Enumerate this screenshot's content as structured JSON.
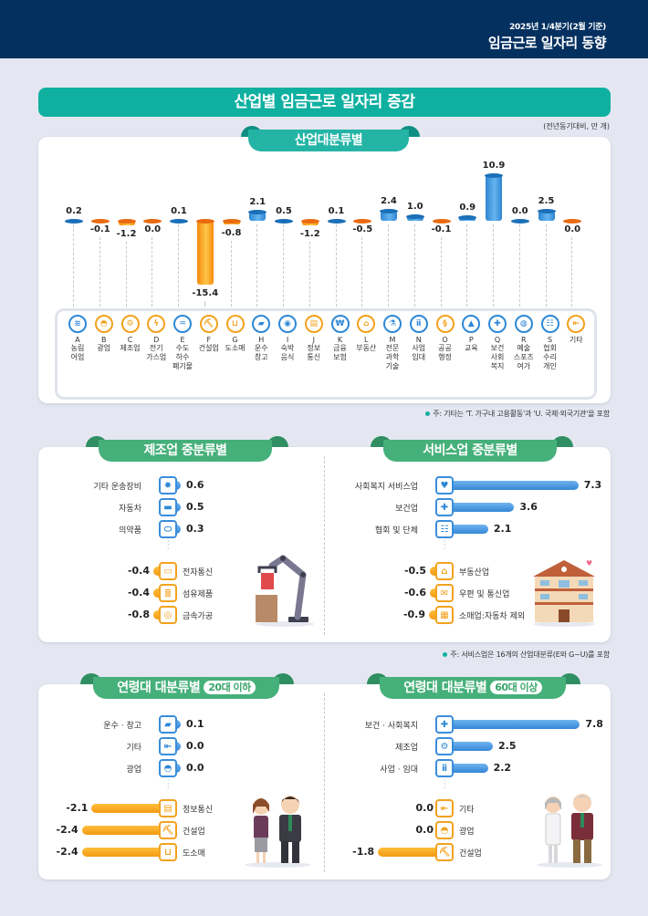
{
  "header": {
    "subtitle": "2025년 1/4분기(2월 기준)",
    "title": "임금근로 일자리 동향"
  },
  "main_title": "산업별 임금근로 일자리 증감",
  "unit_note": "(전년동기대비, 만 개)",
  "industry_section": {
    "tab_label": "산업대분류별",
    "footnote": "주: 기타는 'T. 가구내 고용활동'과 'U. 국제·외국기관'을 포함",
    "items": [
      {
        "code": "A",
        "name": "농림\n어업",
        "value": "0.2",
        "icon": "wheat-icon",
        "glyph": "≋",
        "color": "b"
      },
      {
        "code": "B",
        "name": "광업",
        "value": "-0.1",
        "icon": "helmet-icon",
        "glyph": "◓",
        "color": "o"
      },
      {
        "code": "C",
        "name": "제조업",
        "value": "-1.2",
        "icon": "gears-icon",
        "glyph": "⚙",
        "color": "o"
      },
      {
        "code": "D",
        "name": "전기\n가스업",
        "value": "0.0",
        "icon": "lightning-icon",
        "glyph": "ϟ",
        "color": "o"
      },
      {
        "code": "E",
        "name": "수도\n하수\n폐기물",
        "value": "0.1",
        "icon": "faucet-icon",
        "glyph": "♒",
        "color": "b"
      },
      {
        "code": "F",
        "name": "건설업",
        "value": "-15.4",
        "icon": "excavator-icon",
        "glyph": "⛏",
        "color": "o"
      },
      {
        "code": "G",
        "name": "도소매",
        "value": "-0.8",
        "icon": "basket-icon",
        "glyph": "⊔",
        "color": "o"
      },
      {
        "code": "H",
        "name": "운수\n창고",
        "value": "2.1",
        "icon": "truck-icon",
        "glyph": "▰",
        "color": "b"
      },
      {
        "code": "I",
        "name": "숙박\n음식",
        "value": "0.5",
        "icon": "plate-icon",
        "glyph": "◉",
        "color": "b"
      },
      {
        "code": "J",
        "name": "정보\n통신",
        "value": "-1.2",
        "icon": "document-icon",
        "glyph": "▤",
        "color": "o"
      },
      {
        "code": "K",
        "name": "금융\n보험",
        "value": "0.1",
        "icon": "atm-icon",
        "glyph": "₩",
        "color": "b"
      },
      {
        "code": "L",
        "name": "부동산",
        "value": "-0.5",
        "icon": "house-icon",
        "glyph": "⌂",
        "color": "o"
      },
      {
        "code": "M",
        "name": "전문\n과학\n기술",
        "value": "2.4",
        "icon": "flask-icon",
        "glyph": "⚗",
        "color": "b"
      },
      {
        "code": "N",
        "name": "사업\n임대",
        "value": "1.0",
        "icon": "people-icon",
        "glyph": "ⅱ",
        "color": "b"
      },
      {
        "code": "O",
        "name": "공공\n행정",
        "value": "-0.1",
        "icon": "scroll-icon",
        "glyph": "§",
        "color": "o"
      },
      {
        "code": "P",
        "name": "교육",
        "value": "0.9",
        "icon": "graduation-cap-icon",
        "glyph": "▲",
        "color": "b"
      },
      {
        "code": "Q",
        "name": "보건\n사회\n복지",
        "value": "10.9",
        "icon": "medical-kit-icon",
        "glyph": "✚",
        "color": "b"
      },
      {
        "code": "R",
        "name": "예술\n스포츠\n여가",
        "value": "0.0",
        "icon": "palette-icon",
        "glyph": "◍",
        "color": "b"
      },
      {
        "code": "S",
        "name": "협회\n수리\n개인",
        "value": "2.5",
        "icon": "group-icon",
        "glyph": "☷",
        "color": "b"
      },
      {
        "code": "",
        "name": "기타",
        "value": "0.0",
        "icon": "exit-door-icon",
        "glyph": "⇤",
        "color": "o"
      }
    ]
  },
  "manufacturing_section": {
    "tab_label": "제조업 중분류별",
    "positive": [
      {
        "label": "기타 운송장비",
        "value": "0.6",
        "icon": "ship-wheel-icon",
        "glyph": "✹"
      },
      {
        "label": "자동차",
        "value": "0.5",
        "icon": "car-icon",
        "glyph": "▬"
      },
      {
        "label": "의약품",
        "value": "0.3",
        "icon": "pill-icon",
        "glyph": "⬭"
      }
    ],
    "negative": [
      {
        "label": "전자통신",
        "value": "-0.4",
        "icon": "laptop-icon",
        "glyph": "▭"
      },
      {
        "label": "섬유제품",
        "value": "-0.4",
        "icon": "thread-spool-icon",
        "glyph": "≣"
      },
      {
        "label": "금속가공",
        "value": "-0.8",
        "icon": "metal-ring-icon",
        "glyph": "◎"
      }
    ]
  },
  "service_section": {
    "tab_label": "서비스업 중분류별",
    "footnote": "주: 서비스업은 16개의 산업대분류(E와 G~U)를 포함",
    "positive": [
      {
        "label": "사회복지 서비스업",
        "value": "7.3",
        "icon": "heart-hands-icon",
        "glyph": "♥"
      },
      {
        "label": "보건업",
        "value": "3.6",
        "icon": "medical-cross-icon",
        "glyph": "✚"
      },
      {
        "label": "협회 및 단체",
        "value": "2.1",
        "icon": "group-icon",
        "glyph": "☷"
      }
    ],
    "negative": [
      {
        "label": "부동산업",
        "value": "-0.5",
        "icon": "house-icon",
        "glyph": "⌂"
      },
      {
        "label": "우편 및 통신업",
        "value": "-0.6",
        "icon": "mail-icon",
        "glyph": "✉"
      },
      {
        "label": "소매업:자동차 제외",
        "value": "-0.9",
        "icon": "store-icon",
        "glyph": "▦"
      }
    ]
  },
  "age20_section": {
    "tab_label": "연령대 대분류별",
    "tab_pill": "20대 이하",
    "positive": [
      {
        "label": "운수 · 창고",
        "value": "0.1",
        "icon": "truck-icon",
        "glyph": "▰"
      },
      {
        "label": "기타",
        "value": "0.0",
        "icon": "exit-door-icon",
        "glyph": "⇤"
      },
      {
        "label": "광업",
        "value": "0.0",
        "icon": "helmet-icon",
        "glyph": "◓"
      }
    ],
    "negative": [
      {
        "label": "정보통신",
        "value": "-2.1",
        "icon": "document-icon",
        "glyph": "▤"
      },
      {
        "label": "건설업",
        "value": "-2.4",
        "icon": "excavator-icon",
        "glyph": "⛏"
      },
      {
        "label": "도소매",
        "value": "-2.4",
        "icon": "basket-icon",
        "glyph": "⊔"
      }
    ]
  },
  "age60_section": {
    "tab_label": "연령대 대분류별",
    "tab_pill": "60대 이상",
    "positive": [
      {
        "label": "보건 · 사회복지",
        "value": "7.8",
        "icon": "medical-kit-icon",
        "glyph": "✚"
      },
      {
        "label": "제조업",
        "value": "2.5",
        "icon": "gears-icon",
        "glyph": "⚙"
      },
      {
        "label": "사업 · 임대",
        "value": "2.2",
        "icon": "people-icon",
        "glyph": "ⅱ"
      }
    ],
    "negative": [
      {
        "label": "기타",
        "value": "0.0",
        "icon": "exit-door-icon",
        "glyph": "⇤"
      },
      {
        "label": "광업",
        "value": "0.0",
        "icon": "helmet-icon",
        "glyph": "◓"
      },
      {
        "label": "건설업",
        "value": "-1.8",
        "icon": "excavator-icon",
        "glyph": "⛏"
      }
    ]
  },
  "colors": {
    "header_bg": "#04305f",
    "banner_teal": "#10b0a1",
    "tab_green": "#46b07a",
    "positive_blue": "#3586d5",
    "negative_orange": "#f39a12",
    "page_bg": "#e4e7f1"
  },
  "chart_data": [
    {
      "type": "bar",
      "title": "산업대분류별",
      "ylabel": "전년동기대비, 만 개",
      "categories": [
        "A 농림어업",
        "B 광업",
        "C 제조업",
        "D 전기가스업",
        "E 수도하수폐기물",
        "F 건설업",
        "G 도소매",
        "H 운수창고",
        "I 숙박음식",
        "J 정보통신",
        "K 금융보험",
        "L 부동산",
        "M 전문과학기술",
        "N 사업임대",
        "O 공공행정",
        "P 교육",
        "Q 보건사회복지",
        "R 예술스포츠여가",
        "S 협회수리개인",
        "기타"
      ],
      "values": [
        0.2,
        -0.1,
        -1.2,
        0.0,
        0.1,
        -15.4,
        -0.8,
        2.1,
        0.5,
        -1.2,
        0.1,
        -0.5,
        2.4,
        1.0,
        -0.1,
        0.9,
        10.9,
        0.0,
        2.5,
        0.0
      ],
      "grid": false
    },
    {
      "type": "bar",
      "orientation": "horizontal",
      "title": "제조업 중분류별",
      "categories": [
        "기타 운송장비",
        "자동차",
        "의약품",
        "전자통신",
        "섬유제품",
        "금속가공"
      ],
      "values": [
        0.6,
        0.5,
        0.3,
        -0.4,
        -0.4,
        -0.8
      ]
    },
    {
      "type": "bar",
      "orientation": "horizontal",
      "title": "서비스업 중분류별",
      "categories": [
        "사회복지 서비스업",
        "보건업",
        "협회 및 단체",
        "부동산업",
        "우편 및 통신업",
        "소매업:자동차 제외"
      ],
      "values": [
        7.3,
        3.6,
        2.1,
        -0.5,
        -0.6,
        -0.9
      ]
    },
    {
      "type": "bar",
      "orientation": "horizontal",
      "title": "연령대 대분류별 20대 이하",
      "categories": [
        "운수·창고",
        "기타",
        "광업",
        "정보통신",
        "건설업",
        "도소매"
      ],
      "values": [
        0.1,
        0.0,
        0.0,
        -2.1,
        -2.4,
        -2.4
      ]
    },
    {
      "type": "bar",
      "orientation": "horizontal",
      "title": "연령대 대분류별 60대 이상",
      "categories": [
        "보건·사회복지",
        "제조업",
        "사업·임대",
        "기타",
        "광업",
        "건설업"
      ],
      "values": [
        7.8,
        2.5,
        2.2,
        0.0,
        0.0,
        -1.8
      ]
    }
  ]
}
